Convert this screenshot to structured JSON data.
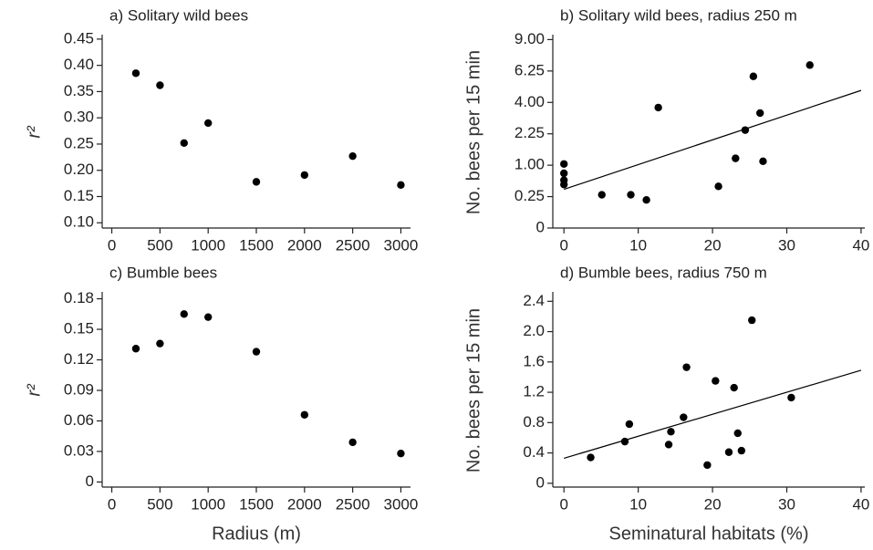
{
  "chart_data": [
    {
      "type": "scatter",
      "title": "a) Solitary wild bees",
      "ylabel": "r²",
      "color": "#000000",
      "x": [
        250,
        500,
        750,
        1000,
        1500,
        2000,
        2500,
        3000
      ],
      "values": [
        0.385,
        0.362,
        0.252,
        0.29,
        0.178,
        0.191,
        0.227,
        0.172
      ],
      "xlim": [
        -100,
        3100
      ],
      "xticks": [
        0,
        500,
        1000,
        1500,
        2000,
        2500,
        3000
      ],
      "ylim": [
        0.09,
        0.455
      ],
      "yticks": [
        {
          "value": 0.1,
          "label": "0.10"
        },
        0.15,
        {
          "value": 0.2,
          "label": "0.20"
        },
        0.25,
        {
          "value": 0.3,
          "label": "0.30"
        },
        0.35,
        {
          "value": 0.4,
          "label": "0.40"
        },
        0.45
      ]
    },
    {
      "type": "scatter",
      "title": "b) Solitary wild bees, radius 250 m",
      "ylabel": "No. bees per 15 min",
      "color": "#000000",
      "yscale": "sqrt",
      "x": [
        0,
        0,
        0,
        0,
        5.1,
        9.0,
        11.1,
        12.7,
        25.5,
        33.1,
        26.4,
        24.4,
        23.1,
        26.8,
        20.8
      ],
      "values": [
        1.04,
        0.76,
        0.58,
        0.48,
        0.28,
        0.28,
        0.2,
        3.68,
        5.83,
        6.73,
        3.35,
        2.43,
        1.23,
        1.13,
        0.44
      ],
      "fit": {
        "x": [
          0,
          40
        ],
        "y": [
          0.38,
          4.8
        ]
      },
      "xlim": [
        -1.5,
        40.5
      ],
      "xticks": [
        0,
        10,
        20,
        30,
        40
      ],
      "ylim": [
        0,
        9.3
      ],
      "yticks": [
        0,
        0.25,
        {
          "value": 1,
          "label": "1.00"
        },
        2.25,
        {
          "value": 4,
          "label": "4.00"
        },
        6.25,
        {
          "value": 9,
          "label": "9.00"
        }
      ]
    },
    {
      "type": "scatter",
      "title": "c) Bumble bees",
      "ylabel": "r²",
      "xlabel": "Radius (m)",
      "color": "#000000",
      "x": [
        250,
        500,
        750,
        1000,
        1500,
        2000,
        2500,
        3000
      ],
      "values": [
        0.131,
        0.136,
        0.165,
        0.162,
        0.128,
        0.066,
        0.039,
        0.028
      ],
      "xlim": [
        -100,
        3100
      ],
      "xticks": [
        0,
        500,
        1000,
        1500,
        2000,
        2500,
        3000
      ],
      "ylim": [
        -0.005,
        0.185
      ],
      "yticks": [
        0,
        0.03,
        0.06,
        0.09,
        0.12,
        0.15,
        0.18
      ]
    },
    {
      "type": "scatter",
      "title": "d) Bumble bees, radius 750 m",
      "ylabel": "No. bees per 15 min",
      "xlabel": "Seminatural habitats (%)",
      "color": "#000000",
      "x": [
        3.6,
        8.2,
        8.8,
        14.1,
        14.4,
        16.1,
        16.5,
        19.3,
        20.4,
        22.2,
        22.9,
        23.4,
        23.9,
        25.3,
        30.6
      ],
      "values": [
        0.34,
        0.55,
        0.78,
        0.51,
        0.68,
        0.87,
        1.53,
        0.24,
        1.35,
        0.41,
        1.26,
        0.66,
        0.43,
        2.15,
        1.13
      ],
      "fit": {
        "x": [
          0,
          40
        ],
        "y": [
          0.33,
          1.49
        ]
      },
      "xlim": [
        -1.5,
        40.5
      ],
      "xticks": [
        0,
        10,
        20,
        30,
        40
      ],
      "ylim": [
        -0.05,
        2.5
      ],
      "yticks": [
        0,
        0.4,
        0.8,
        1.2,
        1.6,
        {
          "value": 2,
          "label": "2.0"
        },
        2.4
      ]
    }
  ]
}
